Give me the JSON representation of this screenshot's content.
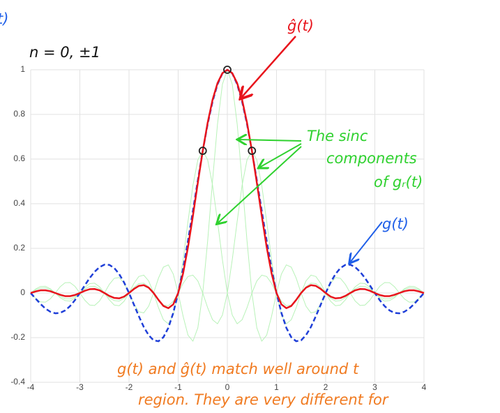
{
  "chart_data": {
    "type": "line",
    "x": [
      -4,
      -3.9,
      -3.8,
      -3.7,
      -3.6,
      -3.5,
      -3.4,
      -3.3,
      -3.2,
      -3.1,
      -3,
      -2.9,
      -2.8,
      -2.7,
      -2.6,
      -2.5,
      -2.4,
      -2.3,
      -2.2,
      -2.1,
      -2,
      -1.9,
      -1.8,
      -1.7,
      -1.6,
      -1.5,
      -1.4,
      -1.3,
      -1.2,
      -1.1,
      -1,
      -0.9,
      -0.8,
      -0.7,
      -0.6,
      -0.5,
      -0.4,
      -0.3,
      -0.2,
      -0.1,
      0,
      0.1,
      0.2,
      0.3,
      0.4,
      0.5,
      0.6,
      0.7,
      0.8,
      0.9,
      1,
      1.1,
      1.2,
      1.3,
      1.4,
      1.5,
      1.6,
      1.7,
      1.8,
      1.9,
      2,
      2.1,
      2.2,
      2.3,
      2.4,
      2.5,
      2.6,
      2.7,
      2.8,
      2.9,
      3,
      3.1,
      3.2,
      3.3,
      3.4,
      3.5,
      3.6,
      3.7,
      3.8,
      3.9,
      4
    ],
    "series": [
      {
        "color": "#b8f2b8",
        "width": 1,
        "dashed": false,
        "values": [
          0,
          -0.024,
          -0.04,
          -0.041,
          -0.026,
          0,
          0.028,
          0.046,
          0.047,
          0.03,
          0,
          -0.032,
          -0.054,
          -0.056,
          -0.036,
          0,
          0.039,
          0.066,
          0.069,
          0.045,
          0,
          -0.049,
          -0.084,
          -0.089,
          -0.059,
          0,
          0.067,
          0.116,
          0.126,
          0.085,
          0,
          -0.104,
          -0.189,
          -0.216,
          -0.156,
          0,
          0.234,
          0.505,
          0.757,
          0.935,
          1,
          0.935,
          0.757,
          0.505,
          0.234,
          0,
          -0.156,
          -0.216,
          -0.189,
          -0.104,
          0,
          0.085,
          0.126,
          0.116,
          0.067,
          0,
          -0.059,
          -0.089,
          -0.084,
          -0.049,
          0,
          0.045,
          0.069,
          0.066,
          0.039,
          0,
          -0.036,
          -0.056,
          -0.054,
          -0.032,
          0,
          0.03,
          0.047,
          0.046,
          0.028,
          0,
          -0.026,
          -0.041,
          -0.04,
          -0.024,
          0
        ]
      },
      {
        "color": "#b8f2b8",
        "width": 1,
        "dashed": false,
        "values": [
          0,
          0.018,
          0.029,
          0.03,
          0.019,
          0,
          -0.021,
          -0.034,
          -0.036,
          -0.023,
          0,
          0.025,
          0.042,
          0.044,
          0.028,
          0,
          -0.031,
          -0.054,
          -0.057,
          -0.037,
          0,
          0.043,
          0.074,
          0.08,
          0.054,
          0,
          -0.066,
          -0.12,
          -0.138,
          -0.099,
          0,
          0.149,
          0.321,
          0.482,
          0.596,
          0.637,
          0.596,
          0.482,
          0.321,
          0.149,
          0,
          -0.099,
          -0.138,
          -0.12,
          -0.066,
          0,
          0.054,
          0.08,
          0.074,
          0.043,
          0,
          -0.037,
          -0.057,
          -0.054,
          -0.031,
          0,
          0.028,
          0.044,
          0.042,
          0.025,
          0,
          -0.023,
          -0.036,
          -0.034,
          -0.021,
          0,
          0.019,
          0.03,
          0.029,
          0.018,
          0,
          -0.017,
          -0.026,
          -0.025,
          -0.015,
          0,
          0.015,
          0.023,
          0.022,
          0.014,
          0
        ]
      },
      {
        "color": "#b8f2b8",
        "width": 1,
        "dashed": false,
        "values": [
          0,
          0.014,
          0.022,
          0.023,
          0.015,
          0,
          -0.015,
          -0.025,
          -0.026,
          -0.017,
          0,
          0.018,
          0.029,
          0.03,
          0.019,
          0,
          -0.021,
          -0.034,
          -0.036,
          -0.023,
          0,
          0.025,
          0.042,
          0.044,
          0.028,
          0,
          -0.031,
          -0.054,
          -0.057,
          -0.037,
          0,
          0.043,
          0.074,
          0.08,
          0.054,
          0,
          -0.066,
          -0.12,
          -0.138,
          -0.099,
          0,
          0.149,
          0.321,
          0.482,
          0.596,
          0.637,
          0.596,
          0.482,
          0.321,
          0.149,
          0,
          -0.099,
          -0.138,
          -0.12,
          -0.066,
          0,
          0.054,
          0.08,
          0.074,
          0.043,
          0,
          -0.037,
          -0.057,
          -0.054,
          -0.031,
          0,
          0.028,
          0.044,
          0.042,
          0.025,
          0,
          -0.023,
          -0.036,
          -0.034,
          -0.021,
          0,
          0.019,
          0.03,
          0.029,
          0.018,
          0
        ]
      },
      {
        "color": "#1f3fd8",
        "width": 2.5,
        "dashed": true,
        "values": [
          0,
          -0.025,
          -0.049,
          -0.07,
          -0.084,
          -0.091,
          -0.089,
          -0.078,
          -0.059,
          -0.032,
          0,
          0.034,
          0.067,
          0.095,
          0.116,
          0.127,
          0.126,
          0.112,
          0.085,
          0.047,
          0,
          -0.052,
          -0.104,
          -0.152,
          -0.189,
          -0.212,
          -0.216,
          -0.198,
          -0.156,
          -0.089,
          0,
          0.109,
          0.234,
          0.368,
          0.505,
          0.637,
          0.757,
          0.858,
          0.935,
          0.984,
          1,
          0.984,
          0.935,
          0.858,
          0.757,
          0.637,
          0.505,
          0.368,
          0.234,
          0.109,
          0,
          -0.089,
          -0.156,
          -0.198,
          -0.216,
          -0.212,
          -0.189,
          -0.152,
          -0.104,
          -0.052,
          0,
          0.047,
          0.085,
          0.112,
          0.126,
          0.127,
          0.116,
          0.095,
          0.067,
          0.034,
          0,
          -0.032,
          -0.059,
          -0.078,
          -0.089,
          -0.091,
          -0.084,
          -0.07,
          -0.049,
          -0.025,
          0
        ]
      },
      {
        "color": "#e8141c",
        "width": 2.5,
        "dashed": false,
        "values": [
          0,
          0.007,
          0.012,
          0.012,
          0.008,
          0,
          -0.008,
          -0.014,
          -0.014,
          -0.009,
          0,
          0.01,
          0.017,
          0.018,
          0.012,
          0,
          -0.013,
          -0.022,
          -0.024,
          -0.016,
          0,
          0.018,
          0.032,
          0.035,
          0.024,
          0,
          -0.031,
          -0.058,
          -0.068,
          -0.051,
          0,
          0.088,
          0.206,
          0.346,
          0.494,
          0.637,
          0.763,
          0.866,
          0.94,
          0.985,
          1,
          0.985,
          0.94,
          0.866,
          0.763,
          0.637,
          0.494,
          0.346,
          0.206,
          0.088,
          0,
          -0.051,
          -0.068,
          -0.058,
          -0.031,
          0,
          0.024,
          0.035,
          0.032,
          0.018,
          0,
          -0.016,
          -0.024,
          -0.022,
          -0.013,
          0,
          0.012,
          0.018,
          0.017,
          0.01,
          0,
          -0.009,
          -0.014,
          -0.014,
          -0.008,
          0,
          0.008,
          0.012,
          0.012,
          0.007,
          0
        ]
      }
    ],
    "samples": {
      "color": "#222222",
      "x": [
        -0.5,
        0,
        0.5
      ],
      "values": [
        0.637,
        1,
        0.637
      ]
    },
    "xlim": [
      -4,
      4
    ],
    "xticks": [
      -4,
      -3,
      -2,
      -1,
      0,
      1,
      2,
      3,
      4
    ],
    "ylim": [
      -0.4,
      1
    ],
    "yticks": [
      -0.4,
      -0.2,
      0,
      0.2,
      0.4,
      0.6,
      0.8,
      1
    ],
    "grid": true,
    "annotations": [
      "t)",
      "n = 0, ±1",
      "ĝ(t)",
      "The sinc",
      "components",
      "of gᵣ(t)",
      "g(t)",
      "g(t) and ĝ(t) match well around t",
      "region. They are very different for"
    ]
  }
}
